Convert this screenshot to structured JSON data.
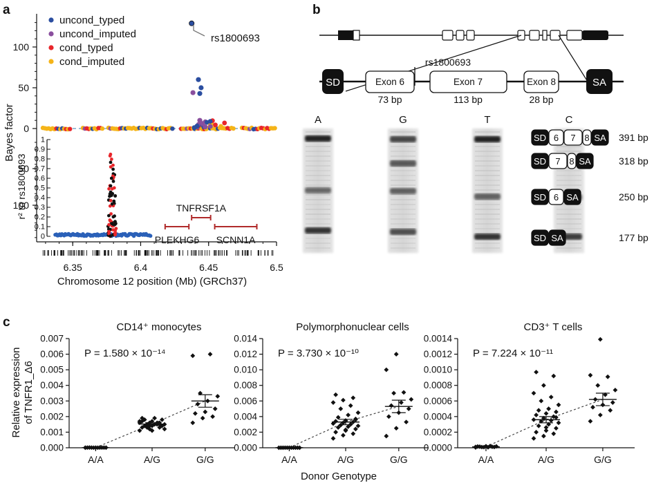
{
  "panel_labels": {
    "a": "a",
    "b": "b",
    "c": "c"
  },
  "colors": {
    "uncond_typed": "#2b4ea0",
    "uncond_imputed": "#8a4f9e",
    "cond_typed": "#e8262b",
    "cond_imputed": "#f5b418",
    "ld_blue": "#2a60b8",
    "gene": "#b02a2a",
    "box_dark": "#111111"
  },
  "chart_data": [
    {
      "id": "a",
      "type": "scatter",
      "xlabel": "Chromosome 12 position (Mb) (GRCh37)",
      "xlim": [
        6.327,
        6.5
      ],
      "x_ticks": [
        "6.35",
        "6.4",
        "6.45",
        "6.5"
      ],
      "upper": {
        "ylabel": "Bayes factor",
        "ylim": [
          -5,
          132
        ],
        "y_ticks": [
          "0",
          "50",
          "100"
        ],
        "legend_position": "top-left",
        "legend": [
          {
            "label": "uncond_typed",
            "color": "#2b4ea0"
          },
          {
            "label": "uncond_imputed",
            "color": "#8a4f9e"
          },
          {
            "label": "cond_typed",
            "color": "#e8262b"
          },
          {
            "label": "cond_imputed",
            "color": "#f5b418"
          }
        ],
        "annotation": "rs1800693",
        "series": [
          {
            "name": "uncond_typed",
            "x": [
              6.4375,
              6.4425,
              6.4445,
              6.4435,
              6.4415,
              6.4455,
              6.4395,
              6.4465
            ],
            "y": [
              129,
              60,
              50,
              43,
              3,
              5,
              1,
              2
            ]
          },
          {
            "name": "uncond_imputed",
            "x": [
              6.4385,
              6.4435,
              6.4455,
              6.4475
            ],
            "y": [
              44,
              10,
              6,
              2
            ]
          }
        ]
      },
      "lower": {
        "ylabel": "r² to rs1800693",
        "ylim": [
          0,
          1
        ],
        "y_ticks": [
          "0",
          "0.1",
          "0.2",
          "0.3",
          "0.4",
          "0.5",
          "0.6",
          "0.7",
          "0.8",
          "0.9",
          "1"
        ],
        "y_ticks_left": [
          "50",
          "100"
        ],
        "genes": [
          {
            "name": "TNFRSF1A",
            "start": 6.4375,
            "end": 6.4515
          },
          {
            "name": "PLEKHG6",
            "start": 6.418,
            "end": 6.4355
          },
          {
            "name": "SCNN1A",
            "start": 6.4545,
            "end": 6.4855
          }
        ]
      }
    },
    {
      "id": "b",
      "type": "diagram",
      "exons": [
        {
          "label": "Exon 6",
          "size": "73 bp"
        },
        {
          "label": "Exon 7",
          "size": "113 bp"
        },
        {
          "label": "Exon 8",
          "size": "28 bp"
        }
      ],
      "flank_left": "SD",
      "flank_right": "SA",
      "snp": "rs1800693",
      "lanes": [
        "A",
        "G",
        "T",
        "C"
      ],
      "bands": [
        {
          "construct": [
            "SD",
            "6",
            "7",
            "8",
            "SA"
          ],
          "size": "391 bp"
        },
        {
          "construct": [
            "SD",
            "7",
            "8",
            "SA"
          ],
          "size": "318 bp"
        },
        {
          "construct": [
            "SD",
            "6",
            "SA"
          ],
          "size": "250 bp"
        },
        {
          "construct": [
            "SD",
            "SA"
          ],
          "size": "177 bp"
        }
      ]
    },
    {
      "id": "c1",
      "type": "scatter",
      "title": "CD14⁺ monocytes",
      "categories": [
        "A/A",
        "A/G",
        "G/G"
      ],
      "ylim": [
        0,
        0.007
      ],
      "y_ticks": [
        "0.000",
        "0.001",
        "0.002",
        "0.003",
        "0.004",
        "0.005",
        "0.006",
        "0.007"
      ],
      "p_value": "P = 1.580 × 10⁻¹⁴",
      "means": [
        1e-05,
        0.00152,
        0.003
      ],
      "sems": [
        5e-06,
        8e-05,
        0.0004
      ],
      "values": [
        [
          5e-06,
          7e-06,
          1e-05,
          1.2e-05,
          8e-06,
          1e-05,
          1.4e-05,
          6e-06,
          9e-06,
          1.1e-05,
          1.3e-05,
          4e-06
        ],
        [
          0.0011,
          0.0012,
          0.0013,
          0.0013,
          0.0014,
          0.0014,
          0.0014,
          0.0015,
          0.0015,
          0.0015,
          0.0015,
          0.0016,
          0.0016,
          0.0016,
          0.0017,
          0.0017,
          0.0018,
          0.0018,
          0.0019,
          0.0012,
          0.0013,
          0.0016,
          0.0017,
          0.0014,
          0.0015,
          0.0019,
          0.0011
        ],
        [
          0.0016,
          0.0019,
          0.002,
          0.0022,
          0.0023,
          0.0025,
          0.0028,
          0.003,
          0.0033,
          0.0035,
          0.006,
          0.0059
        ]
      ]
    },
    {
      "id": "c2",
      "type": "scatter",
      "title": "Polymorphonuclear cells",
      "categories": [
        "A/A",
        "A/G",
        "G/G"
      ],
      "ylim": [
        0,
        0.014
      ],
      "y_ticks": [
        "0.000",
        "0.002",
        "0.004",
        "0.006",
        "0.008",
        "0.010",
        "0.012",
        "0.014"
      ],
      "p_value": "P = 3.730 × 10⁻¹⁰",
      "means": [
        1e-05,
        0.0033,
        0.0053
      ],
      "sems": [
        5e-06,
        0.00035,
        0.0008
      ],
      "values": [
        [
          5e-06,
          8e-06,
          1e-05,
          6e-06,
          1.2e-05,
          9e-06,
          7e-06,
          1.1e-05,
          4e-06,
          1e-05,
          1.3e-05
        ],
        [
          0.0012,
          0.0016,
          0.0018,
          0.002,
          0.0022,
          0.0024,
          0.0026,
          0.0027,
          0.0028,
          0.0029,
          0.003,
          0.0031,
          0.0032,
          0.0033,
          0.0034,
          0.0035,
          0.0037,
          0.0039,
          0.0042,
          0.0045,
          0.005,
          0.0054,
          0.0058,
          0.0061,
          0.0064,
          0.0068,
          0.0023,
          0.0036
        ],
        [
          0.0015,
          0.0025,
          0.0033,
          0.004,
          0.0045,
          0.005,
          0.0054,
          0.0058,
          0.0062,
          0.007,
          0.0071,
          0.01,
          0.012
        ]
      ]
    },
    {
      "id": "c3",
      "type": "scatter",
      "title": "CD3⁺ T cells",
      "categories": [
        "A/A",
        "A/G",
        "G/G"
      ],
      "ylim": [
        0,
        0.0014
      ],
      "y_ticks": [
        "0.0000",
        "0.0002",
        "0.0004",
        "0.0006",
        "0.0008",
        "0.0010",
        "0.0012",
        "0.0014"
      ],
      "p_value": "P = 7.224 × 10⁻¹¹",
      "means": [
        1.2e-05,
        0.00036,
        0.00062
      ],
      "sems": [
        5e-06,
        4e-05,
        8e-05
      ],
      "values": [
        [
          4e-06,
          8e-06,
          1.2e-05,
          1.6e-05,
          2e-05,
          1e-05,
          1.4e-05,
          6e-06,
          1.8e-05,
          9e-06,
          2.2e-05,
          1.1e-05
        ],
        [
          0.00012,
          0.00015,
          0.00018,
          0.0002,
          0.00022,
          0.00025,
          0.00028,
          0.0003,
          0.00032,
          0.00034,
          0.00035,
          0.00036,
          0.00038,
          0.0004,
          0.00042,
          0.00044,
          0.00046,
          0.00048,
          0.0005,
          0.00055,
          0.0006,
          0.00065,
          0.0007,
          0.0008,
          0.00092,
          0.00097,
          0.00026,
          0.00039
        ],
        [
          0.00034,
          0.00042,
          0.00048,
          0.00052,
          0.00055,
          0.00058,
          0.00062,
          0.00068,
          0.00074,
          0.0008,
          0.00091,
          0.00093,
          0.00139
        ]
      ]
    }
  ],
  "panel_c": {
    "ylabel": "Relative expression of TNFR1_Δ6",
    "ylabel_line1": "Relative expression",
    "ylabel_line2": "of TNFR1_Δ6",
    "xlabel": "Donor Genotype"
  }
}
